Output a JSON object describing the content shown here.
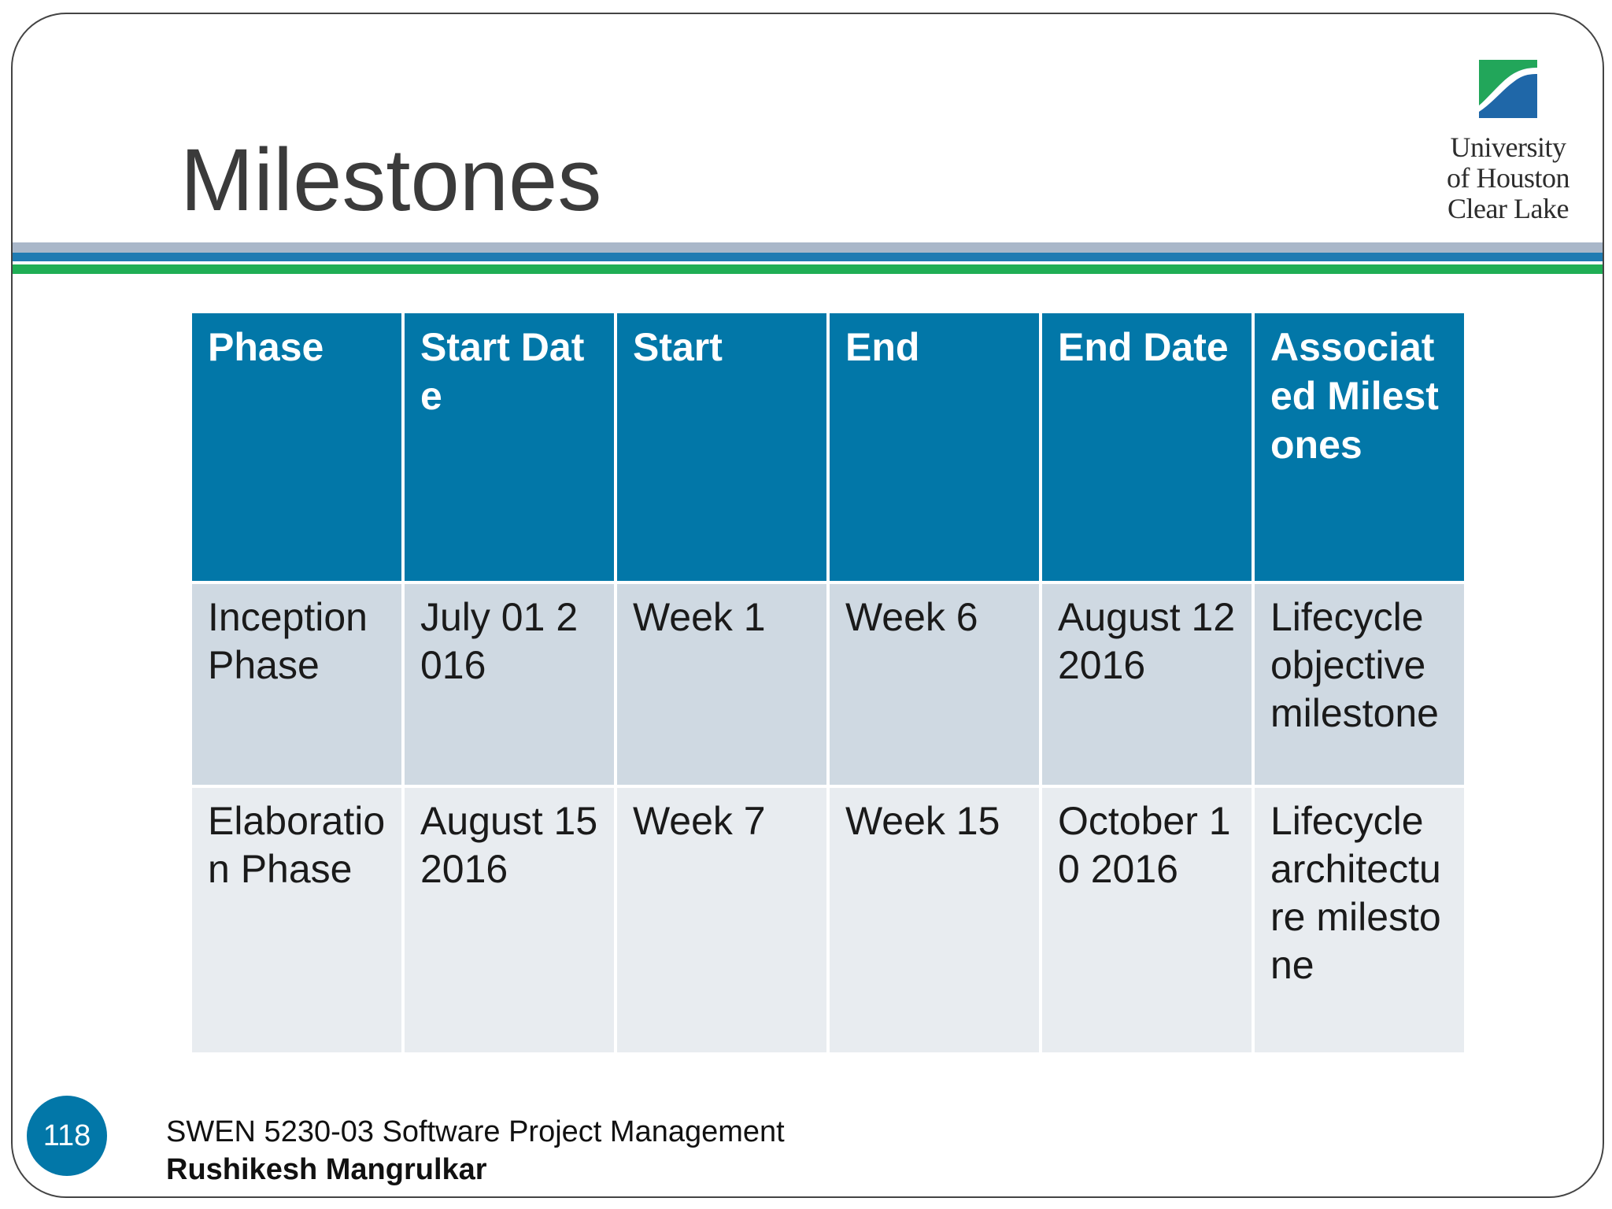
{
  "slide": {
    "title": "Milestones",
    "page_number": "118"
  },
  "logo": {
    "line1": "University",
    "line2": "of Houston",
    "line3": "Clear Lake",
    "colors": {
      "blue": "#1f67a8",
      "green": "#22a65a"
    }
  },
  "table": {
    "headers": [
      "Phase",
      "Start Date",
      "Start",
      "End",
      "End Date",
      "Associated Milestones"
    ],
    "rows": [
      [
        "Inception Phase",
        "July 01 2016",
        "Week 1",
        "Week 6",
        "August 12 2016",
        "Lifecycle objective milestone"
      ],
      [
        "Elaboration Phase",
        "August 15 2016",
        "Week 7",
        "Week 15",
        "October 10 2016",
        "Lifecycle architecture milestone"
      ]
    ]
  },
  "footer": {
    "course": "SWEN 5230-03 Software Project Management",
    "author": "Rushikesh Mangrulkar"
  },
  "colors": {
    "header_bg": "#0277a8",
    "row_odd_bg": "#cfd9e2",
    "row_even_bg": "#e8ecf0",
    "rule_gray": "#a9b7c9",
    "rule_blue": "#1f7bb2",
    "rule_green": "#1fae55"
  }
}
